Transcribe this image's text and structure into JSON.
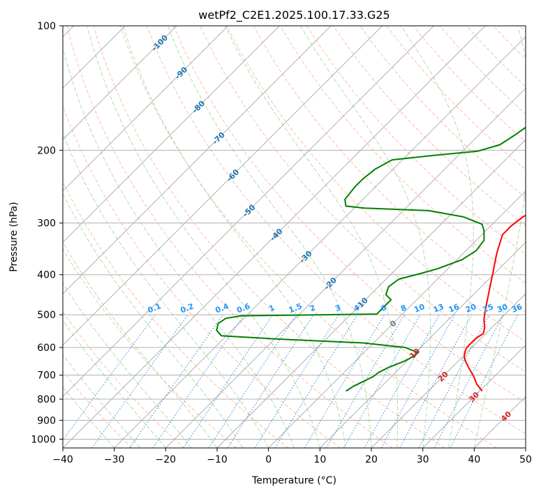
{
  "chart_data": {
    "type": "line",
    "title": "wetPf2_C2E1.2025.100.17.33.G25",
    "xlabel": "Temperature (°C)",
    "ylabel": "Pressure (hPa)",
    "xlim": [
      -40,
      50
    ],
    "ylim": [
      1050,
      100
    ],
    "y_scale": "log",
    "skew_note": "Skew-T log-P diagram",
    "grid": true,
    "x_ticks": [
      -40,
      -30,
      -20,
      -10,
      0,
      10,
      20,
      30,
      40,
      50
    ],
    "x_tick_labels": [
      "−40",
      "−30",
      "−20",
      "−10",
      "0",
      "10",
      "20",
      "30",
      "40",
      "50"
    ],
    "y_ticks": [
      100,
      200,
      300,
      400,
      500,
      600,
      700,
      800,
      900,
      1000
    ],
    "y_tick_labels": [
      "100",
      "200",
      "300",
      "400",
      "500",
      "600",
      "700",
      "800",
      "900",
      "1000"
    ],
    "colors": {
      "temperature": "#ff0000",
      "dewpoint": "#008000",
      "isotherm": "#b0b0b0",
      "isobar": "#b0b0b0",
      "dry_adiabat": "#f9a889",
      "moist_adiabat": "#9fd19f",
      "mixing_ratio": "#3c8fdc",
      "label_isotherm": "#1f77b4",
      "label_mixing_ratio": "#2196f3",
      "label_warm": "#d62728",
      "label_zero": "#777777"
    },
    "series": [
      {
        "name": "temperature",
        "points": [
          [
            30.5,
            765
          ],
          [
            28,
            735
          ],
          [
            26,
            705
          ],
          [
            24,
            680
          ],
          [
            22,
            655
          ],
          [
            20.5,
            635
          ],
          [
            19.5,
            615
          ],
          [
            19,
            600
          ],
          [
            19,
            585
          ],
          [
            19,
            570
          ],
          [
            19.5,
            555
          ],
          [
            19,
            545
          ],
          [
            18.5,
            535
          ],
          [
            17,
            515
          ],
          [
            15.5,
            490
          ],
          [
            12.5,
            440
          ],
          [
            9.5,
            395
          ],
          [
            6.5,
            355
          ],
          [
            4,
            320
          ],
          [
            4,
            305
          ],
          [
            4.5,
            290
          ],
          [
            6,
            277
          ],
          [
            7,
            268
          ],
          [
            7.5,
            258
          ],
          [
            7.5,
            240
          ],
          [
            7.5,
            215
          ],
          [
            7.3,
            195
          ],
          [
            6.8,
            175
          ],
          [
            6.3,
            165
          ],
          [
            6.6,
            157
          ],
          [
            8,
            145
          ],
          [
            8.7,
            135
          ],
          [
            8.5,
            125
          ],
          [
            7.8,
            118
          ],
          [
            7.8,
            110
          ],
          [
            8.2,
            100
          ]
        ]
      },
      {
        "name": "dewpoint",
        "points": [
          [
            4,
            765
          ],
          [
            4.5,
            745
          ],
          [
            5.5,
            725
          ],
          [
            6.5,
            705
          ],
          [
            6.7,
            690
          ],
          [
            7.5,
            673
          ],
          [
            9.5,
            648
          ],
          [
            10.3,
            632
          ],
          [
            10.5,
            617
          ],
          [
            7,
            600
          ],
          [
            -2,
            585
          ],
          [
            -20,
            572
          ],
          [
            -31,
            562
          ],
          [
            -33,
            545
          ],
          [
            -34,
            525
          ],
          [
            -33.5,
            510
          ],
          [
            -31,
            503
          ],
          [
            -15,
            500
          ],
          [
            -5,
            498
          ],
          [
            -5,
            475
          ],
          [
            -5,
            460
          ],
          [
            -7,
            447
          ],
          [
            -8,
            428
          ],
          [
            -7.5,
            410
          ],
          [
            -4.5,
            398
          ],
          [
            -2,
            387
          ],
          [
            1,
            368
          ],
          [
            2,
            350
          ],
          [
            1.5,
            330
          ],
          [
            -0.5,
            312
          ],
          [
            -2,
            302
          ],
          [
            -7,
            290
          ],
          [
            -15,
            280
          ],
          [
            -28,
            276
          ],
          [
            -32,
            273
          ],
          [
            -33.5,
            263
          ],
          [
            -34,
            245
          ],
          [
            -34,
            235
          ],
          [
            -33.5,
            222
          ],
          [
            -32,
            211
          ],
          [
            -25,
            206
          ],
          [
            -17,
            201
          ],
          [
            -14,
            194
          ],
          [
            -13,
            184
          ],
          [
            -12,
            172
          ],
          [
            -11,
            158
          ],
          [
            -10,
            148
          ],
          [
            -8,
            139
          ],
          [
            -7.8,
            130
          ],
          [
            -6.5,
            120
          ],
          [
            -5,
            112
          ],
          [
            -3,
            104
          ],
          [
            -1.5,
            100
          ]
        ]
      }
    ],
    "isotherm_labels": [
      {
        "text": "-100",
        "t": -100,
        "p": 110
      },
      {
        "text": "-90",
        "t": -90,
        "p": 130
      },
      {
        "text": "-80",
        "t": -80,
        "p": 157
      },
      {
        "text": "-70",
        "t": -70,
        "p": 187
      },
      {
        "text": "-60",
        "t": -60,
        "p": 230
      },
      {
        "text": "-50",
        "t": -50,
        "p": 280
      },
      {
        "text": "-40",
        "t": -40,
        "p": 320
      },
      {
        "text": "-30",
        "t": -30,
        "p": 362
      },
      {
        "text": "-20",
        "t": -20,
        "p": 420
      },
      {
        "text": "-10",
        "t": -10,
        "p": 470
      },
      {
        "text": "0",
        "t": 0,
        "p": 525
      },
      {
        "text": "10",
        "t": 10,
        "p": 620
      },
      {
        "text": "20",
        "t": 20,
        "p": 705
      },
      {
        "text": "30",
        "t": 30,
        "p": 790
      },
      {
        "text": "40",
        "t": 40,
        "p": 880
      }
    ],
    "mixing_ratio_labels": [
      "0.1",
      "0.2",
      "0.4",
      "0.6",
      "1",
      "1.5",
      "2",
      "3",
      "4",
      "6",
      "8",
      "10",
      "13",
      "16",
      "20",
      "25",
      "30",
      "36"
    ],
    "mixing_ratio_values": [
      0.1,
      0.2,
      0.4,
      0.6,
      1,
      1.5,
      2,
      3,
      4,
      6,
      8,
      10,
      13,
      16,
      20,
      25,
      30,
      36
    ]
  }
}
